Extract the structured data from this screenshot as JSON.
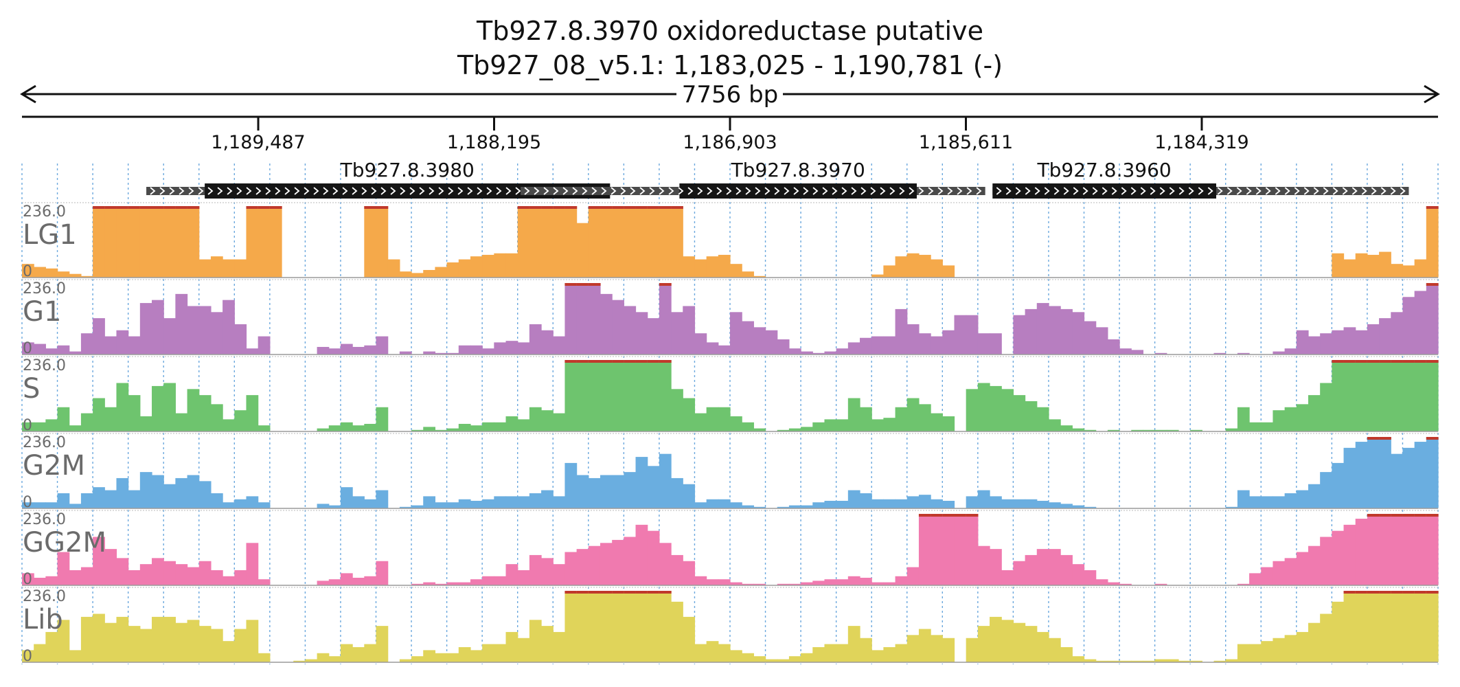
{
  "chart_data": {
    "type": "area",
    "title_line1": "Tb927.8.3970  oxidoreductase  putative",
    "title_line2": "Tb927_08_v5.1: 1,183,025 - 1,190,781 (-)",
    "span_label": "7756 bp",
    "region": {
      "chrom": "Tb927_08_v5.1",
      "start": 1183025,
      "end": 1190781,
      "strand": "-"
    },
    "ticks": [
      {
        "pos": 1189487,
        "label": "1,189,487"
      },
      {
        "pos": 1188195,
        "label": "1,188,195"
      },
      {
        "pos": 1186903,
        "label": "1,186,903"
      },
      {
        "pos": 1185611,
        "label": "1,185,611"
      },
      {
        "pos": 1184319,
        "label": "1,184,319"
      }
    ],
    "genes": [
      {
        "name": "Tb927.8.3980",
        "start": 1187250,
        "end": 1190100,
        "cds_start": 1187560,
        "cds_end": 1189780
      },
      {
        "name": "Tb927.8.3970",
        "start": 1185505,
        "end": 1188050,
        "cds_start": 1185880,
        "cds_end": 1187180
      },
      {
        "name": "Tb927.8.3960",
        "start": 1183185,
        "end": 1185465,
        "cds_start": 1184240,
        "cds_end": 1185465
      }
    ],
    "y_max": 236.0,
    "y_min": 0,
    "bin_count": 120,
    "tracks": [
      {
        "name": "LG1",
        "color": "#f5a94a",
        "max_label": "236.0",
        "min_label": "0",
        "values": [
          45,
          35,
          30,
          20,
          12,
          5,
          236,
          236,
          236,
          236,
          236,
          236,
          236,
          236,
          236,
          60,
          70,
          60,
          60,
          236,
          236,
          236,
          0,
          0,
          0,
          0,
          0,
          0,
          0,
          236,
          236,
          60,
          20,
          15,
          25,
          35,
          50,
          60,
          70,
          75,
          80,
          80,
          236,
          236,
          236,
          236,
          236,
          180,
          236,
          236,
          236,
          236,
          236,
          236,
          236,
          236,
          70,
          60,
          70,
          75,
          45,
          20,
          5,
          0,
          0,
          0,
          0,
          0,
          0,
          0,
          0,
          0,
          10,
          40,
          70,
          80,
          75,
          60,
          40,
          0,
          0,
          0,
          0,
          0,
          0,
          0,
          0,
          0,
          0,
          0,
          0,
          0,
          0,
          0,
          0,
          0,
          0,
          0,
          0,
          0,
          0,
          0,
          0,
          0,
          0,
          0,
          0,
          0,
          0,
          0,
          0,
          80,
          60,
          80,
          75,
          85,
          45,
          40,
          60,
          236
        ]
      },
      {
        "name": "G1",
        "color": "#b77ec0",
        "max_label": "236.0",
        "min_label": "0",
        "values": [
          40,
          35,
          20,
          30,
          10,
          70,
          120,
          60,
          80,
          60,
          170,
          180,
          120,
          200,
          160,
          160,
          140,
          180,
          100,
          20,
          60,
          0,
          0,
          0,
          0,
          25,
          20,
          35,
          25,
          30,
          60,
          0,
          10,
          0,
          10,
          5,
          5,
          30,
          30,
          20,
          40,
          45,
          40,
          100,
          80,
          60,
          236,
          236,
          236,
          200,
          180,
          160,
          140,
          120,
          236,
          140,
          160,
          70,
          40,
          30,
          140,
          110,
          90,
          80,
          50,
          20,
          10,
          5,
          10,
          20,
          40,
          55,
          60,
          60,
          150,
          100,
          70,
          60,
          80,
          130,
          130,
          70,
          70,
          0,
          130,
          150,
          170,
          160,
          150,
          140,
          110,
          90,
          50,
          20,
          15,
          0,
          5,
          0,
          0,
          0,
          0,
          5,
          0,
          5,
          0,
          0,
          10,
          20,
          80,
          60,
          70,
          80,
          90,
          80,
          100,
          120,
          140,
          190,
          210,
          236
        ]
      },
      {
        "name": "S",
        "color": "#6ec46e",
        "max_label": "236.0",
        "min_label": "0",
        "values": [
          30,
          30,
          40,
          80,
          20,
          60,
          110,
          80,
          160,
          120,
          50,
          150,
          160,
          60,
          140,
          120,
          90,
          40,
          70,
          120,
          20,
          0,
          0,
          0,
          0,
          10,
          20,
          30,
          20,
          25,
          80,
          0,
          0,
          5,
          15,
          5,
          10,
          25,
          20,
          30,
          30,
          50,
          40,
          80,
          70,
          60,
          236,
          236,
          236,
          236,
          236,
          236,
          236,
          236,
          236,
          140,
          110,
          60,
          80,
          80,
          50,
          30,
          10,
          0,
          5,
          10,
          15,
          30,
          40,
          40,
          110,
          80,
          40,
          45,
          80,
          110,
          90,
          60,
          50,
          0,
          140,
          160,
          150,
          140,
          120,
          100,
          80,
          40,
          20,
          10,
          5,
          0,
          5,
          0,
          5,
          5,
          5,
          5,
          0,
          5,
          0,
          0,
          10,
          80,
          30,
          30,
          70,
          80,
          90,
          120,
          160,
          236,
          236,
          236,
          236,
          236,
          236,
          236,
          236,
          236
        ]
      },
      {
        "name": "G2M",
        "color": "#6aaee0",
        "max_label": "236.0",
        "min_label": "0",
        "values": [
          20,
          20,
          20,
          50,
          15,
          50,
          70,
          60,
          100,
          60,
          120,
          110,
          80,
          100,
          110,
          90,
          50,
          20,
          30,
          40,
          20,
          0,
          0,
          0,
          0,
          15,
          10,
          70,
          40,
          30,
          60,
          0,
          5,
          10,
          40,
          20,
          20,
          30,
          25,
          30,
          40,
          40,
          40,
          50,
          60,
          40,
          150,
          110,
          100,
          110,
          110,
          120,
          170,
          140,
          180,
          100,
          80,
          20,
          30,
          30,
          20,
          10,
          5,
          0,
          5,
          10,
          10,
          20,
          25,
          25,
          60,
          50,
          30,
          30,
          30,
          40,
          45,
          30,
          25,
          0,
          40,
          60,
          40,
          30,
          30,
          30,
          25,
          20,
          15,
          10,
          5,
          0,
          0,
          0,
          0,
          0,
          0,
          0,
          0,
          0,
          0,
          0,
          5,
          60,
          40,
          40,
          40,
          50,
          60,
          80,
          120,
          150,
          200,
          220,
          236,
          236,
          180,
          200,
          220,
          236
        ]
      },
      {
        "name": "GG2M",
        "color": "#f07aaf",
        "max_label": "236.0",
        "min_label": "0",
        "values": [
          40,
          25,
          30,
          110,
          50,
          60,
          160,
          120,
          90,
          50,
          70,
          90,
          80,
          70,
          60,
          80,
          50,
          30,
          50,
          140,
          20,
          0,
          0,
          0,
          0,
          15,
          20,
          40,
          25,
          30,
          80,
          0,
          0,
          5,
          10,
          5,
          10,
          10,
          20,
          30,
          30,
          70,
          50,
          100,
          90,
          70,
          110,
          120,
          130,
          140,
          150,
          160,
          200,
          180,
          140,
          100,
          80,
          30,
          20,
          20,
          10,
          5,
          5,
          0,
          5,
          5,
          10,
          15,
          20,
          20,
          30,
          25,
          10,
          10,
          30,
          60,
          236,
          236,
          236,
          236,
          236,
          130,
          120,
          50,
          80,
          100,
          120,
          120,
          100,
          70,
          50,
          20,
          10,
          5,
          0,
          0,
          5,
          0,
          0,
          0,
          0,
          0,
          0,
          5,
          40,
          60,
          80,
          90,
          110,
          130,
          160,
          180,
          200,
          220,
          236,
          236,
          236,
          236,
          236,
          236
        ]
      },
      {
        "name": "Lib",
        "color": "#e0d45a",
        "max_label": "236.0",
        "min_label": "0",
        "values": [
          40,
          60,
          100,
          140,
          40,
          150,
          160,
          130,
          150,
          120,
          110,
          150,
          150,
          130,
          140,
          120,
          110,
          70,
          110,
          140,
          30,
          0,
          0,
          5,
          10,
          30,
          20,
          60,
          50,
          60,
          120,
          0,
          10,
          20,
          40,
          30,
          30,
          50,
          40,
          60,
          60,
          100,
          80,
          140,
          120,
          100,
          236,
          236,
          236,
          236,
          236,
          236,
          236,
          236,
          236,
          200,
          150,
          60,
          70,
          60,
          40,
          30,
          20,
          10,
          10,
          20,
          30,
          50,
          60,
          60,
          120,
          80,
          40,
          50,
          60,
          90,
          110,
          90,
          80,
          0,
          80,
          120,
          150,
          140,
          130,
          120,
          100,
          80,
          50,
          20,
          10,
          5,
          5,
          5,
          5,
          5,
          10,
          10,
          5,
          5,
          0,
          5,
          10,
          60,
          60,
          70,
          80,
          90,
          100,
          130,
          160,
          200,
          236,
          236,
          236,
          236,
          236,
          236,
          236,
          236
        ]
      }
    ]
  }
}
